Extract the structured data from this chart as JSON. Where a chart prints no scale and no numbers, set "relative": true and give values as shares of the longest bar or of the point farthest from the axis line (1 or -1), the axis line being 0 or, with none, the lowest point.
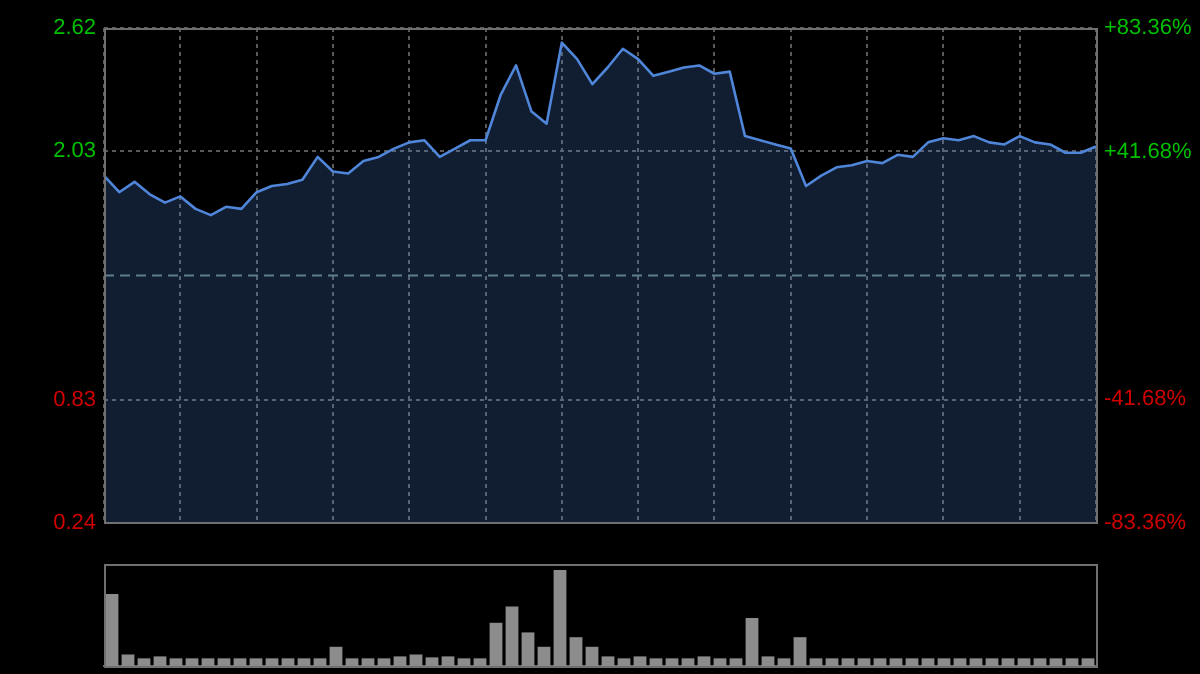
{
  "chart_data": [
    {
      "type": "area",
      "color": "#4f86d9",
      "categories": [
        null,
        null,
        null,
        null,
        null,
        null,
        null,
        null,
        null,
        null,
        null,
        null,
        null,
        null,
        null,
        null,
        null,
        null,
        null,
        null,
        null,
        null,
        null,
        null,
        null,
        null,
        null,
        null,
        null,
        null,
        null,
        null,
        null,
        null,
        null,
        null,
        null,
        null,
        null,
        null,
        null,
        null,
        null,
        null,
        null,
        null,
        null,
        null,
        null,
        null,
        null,
        null,
        null,
        null,
        null,
        null,
        null,
        null,
        null,
        null,
        null,
        null,
        null,
        null,
        null,
        null
      ],
      "values": [
        1.91,
        1.83,
        1.88,
        1.82,
        1.78,
        1.81,
        1.75,
        1.72,
        1.76,
        1.75,
        1.83,
        1.86,
        1.87,
        1.89,
        2.0,
        1.93,
        1.92,
        1.98,
        2.0,
        2.04,
        2.07,
        2.08,
        2.0,
        2.04,
        2.08,
        2.08,
        2.3,
        2.44,
        2.22,
        2.16,
        2.55,
        2.47,
        2.35,
        2.43,
        2.52,
        2.47,
        2.39,
        2.41,
        2.43,
        2.44,
        2.4,
        2.41,
        2.1,
        2.08,
        2.06,
        2.04,
        1.86,
        1.91,
        1.95,
        1.96,
        1.98,
        1.97,
        2.01,
        2.0,
        2.07,
        2.09,
        2.08,
        2.1,
        2.07,
        2.06,
        2.1,
        2.07,
        2.06,
        2.02,
        2.02,
        2.05
      ],
      "ylim": [
        0.24,
        2.62
      ],
      "yticks": [
        0.24,
        0.83,
        2.03,
        2.62
      ],
      "y2lim": [
        -83.36,
        83.36
      ],
      "y2ticks": [
        {
          "value": -83.36,
          "label": "-83.36%"
        },
        {
          "value": -41.68,
          "label": "-41.68%"
        },
        {
          "value": 41.68,
          "label": "+41.68%"
        },
        {
          "value": 83.36,
          "label": "+83.36%"
        }
      ],
      "ref_lines": [
        {
          "axis": "y",
          "value": 1.43,
          "color": "#5f7f8f",
          "line_style": "dashed"
        }
      ],
      "grid": true,
      "tick_labels": "y",
      "legend": false
    },
    {
      "type": "bar",
      "color": "#8c8c8c",
      "relative": true,
      "tick_labels": false,
      "legend": false,
      "categories": [
        null,
        null,
        null,
        null,
        null,
        null,
        null,
        null,
        null,
        null,
        null,
        null,
        null,
        null,
        null,
        null,
        null,
        null,
        null,
        null,
        null,
        null,
        null,
        null,
        null,
        null,
        null,
        null,
        null,
        null,
        null,
        null,
        null,
        null,
        null,
        null,
        null,
        null,
        null,
        null,
        null,
        null,
        null,
        null,
        null,
        null,
        null,
        null,
        null,
        null,
        null,
        null,
        null,
        null,
        null,
        null,
        null,
        null,
        null,
        null,
        null,
        null
      ],
      "values": [
        0.75,
        0.12,
        0.08,
        0.1,
        0.08,
        0.08,
        0.08,
        0.08,
        0.08,
        0.08,
        0.08,
        0.08,
        0.08,
        0.08,
        0.2,
        0.08,
        0.08,
        0.08,
        0.1,
        0.12,
        0.09,
        0.1,
        0.08,
        0.08,
        0.45,
        0.62,
        0.35,
        0.2,
        1.0,
        0.3,
        0.2,
        0.1,
        0.08,
        0.1,
        0.08,
        0.08,
        0.08,
        0.1,
        0.08,
        0.08,
        0.5,
        0.1,
        0.08,
        0.3,
        0.08,
        0.08,
        0.08,
        0.08,
        0.08,
        0.08,
        0.08,
        0.08,
        0.08,
        0.08,
        0.08,
        0.08,
        0.08,
        0.08,
        0.08,
        0.08,
        0.08,
        0.08
      ]
    }
  ]
}
